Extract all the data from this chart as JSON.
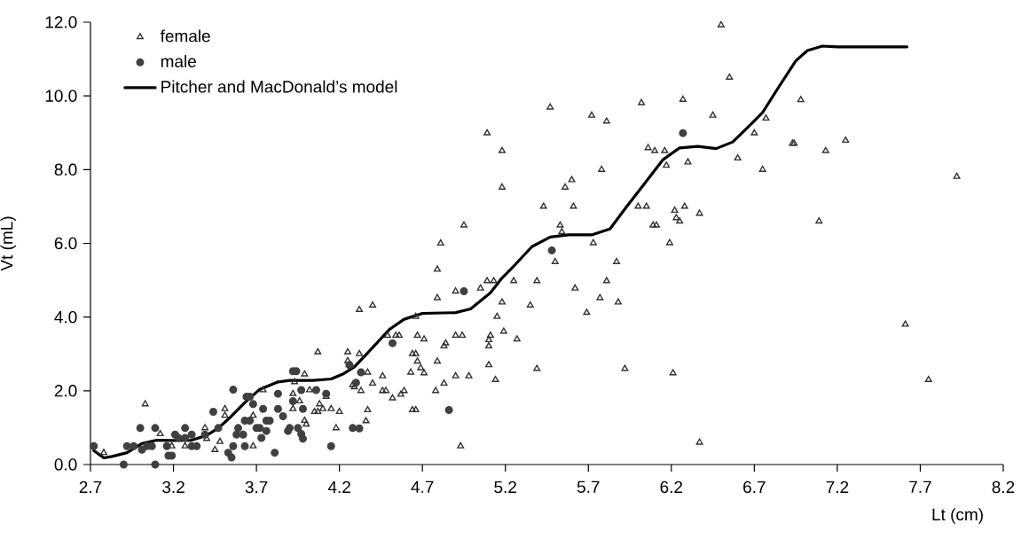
{
  "chart_data": {
    "type": "scatter",
    "xlabel": "Lt (cm)",
    "ylabel": "Vt (mL)",
    "xlim": [
      2.7,
      8.2
    ],
    "ylim": [
      0,
      12
    ],
    "xticks": [
      2.7,
      3.2,
      3.7,
      4.2,
      4.7,
      5.2,
      5.7,
      6.2,
      6.7,
      7.2,
      7.7,
      8.2
    ],
    "yticks": [
      {
        "value": 0,
        "label": "0.0"
      },
      {
        "value": 2,
        "label": "2.0"
      },
      {
        "value": 4,
        "label": "4.0"
      },
      {
        "value": 6,
        "label": "6.0"
      },
      {
        "value": 8,
        "label": "8.0"
      },
      {
        "value": 10,
        "label": "10.0"
      },
      {
        "value": 12,
        "label": "12.0"
      }
    ],
    "legend": "top left",
    "series": [
      {
        "name": "female",
        "marker": "triangle",
        "color": "#333333",
        "x": [
          2.78,
          3.03,
          3.12,
          3.19,
          3.27,
          3.39,
          3.4,
          3.45,
          3.48,
          3.51,
          3.51,
          3.68,
          3.68,
          3.74,
          3.92,
          3.93,
          3.92,
          3.96,
          3.99,
          3.99,
          4.0,
          4.02,
          4.05,
          4.07,
          4.08,
          4.1,
          4.12,
          4.15,
          4.18,
          4.2,
          4.07,
          4.25,
          4.25,
          4.27,
          4.28,
          4.79,
          5.09,
          5.13,
          4.9,
          5.05,
          4.79,
          5.25,
          5.39,
          5.62,
          5.77,
          5.18,
          5.35,
          5.69,
          4.32,
          4.4,
          4.66,
          5.15,
          4.49,
          4.54,
          4.56,
          4.67,
          4.71,
          4.9,
          4.94,
          5.11,
          5.1,
          5.19,
          5.27,
          5.1,
          4.84,
          4.83,
          4.32,
          4.64,
          4.66,
          4.67,
          4.79,
          4.63,
          4.69,
          4.71,
          5.1,
          5.39,
          4.37,
          4.46,
          4.9,
          4.98,
          4.83,
          5.14,
          4.4,
          4.29,
          4.33,
          4.46,
          4.48,
          4.59,
          4.57,
          4.52,
          4.78,
          4.64,
          4.66,
          4.37,
          4.36,
          4.93,
          4.81,
          5.09,
          5.18,
          5.18,
          4.95,
          5.47,
          6.02,
          6.27,
          6.5,
          6.55,
          6.37,
          5.72,
          5.81,
          6.45,
          6.06,
          6.1,
          6.16,
          6.17,
          6.3,
          6.77,
          6.7,
          6.6,
          6.75,
          6.93,
          6.94,
          5.78,
          5.6,
          5.56,
          5.43,
          5.61,
          5.53,
          5.54,
          6.0,
          6.05,
          6.22,
          6.28,
          6.37,
          6.23,
          6.25,
          6.09,
          6.11,
          5.73,
          6.19,
          5.5,
          5.87,
          5.81,
          5.88,
          5.92,
          6.21,
          6.98,
          7.25,
          7.13,
          7.92,
          7.09,
          7.61,
          7.75
        ],
        "values": [
          0.32,
          1.64,
          0.83,
          0.5,
          0.5,
          0.99,
          0.7,
          0.4,
          0.62,
          1.33,
          1.51,
          1.33,
          0.5,
          2.02,
          1.92,
          2.24,
          1.51,
          1.72,
          2.45,
          1.19,
          1.09,
          2.02,
          1.43,
          1.43,
          1.64,
          1.51,
          1.84,
          1.51,
          0.99,
          1.43,
          3.05,
          3.05,
          2.81,
          2.69,
          2.16,
          5.29,
          4.98,
          4.98,
          4.7,
          4.78,
          4.52,
          4.98,
          4.98,
          4.78,
          4.52,
          4.4,
          4.32,
          4.12,
          4.2,
          4.32,
          4.01,
          4.01,
          3.5,
          3.5,
          3.5,
          3.5,
          3.4,
          3.5,
          3.5,
          3.5,
          3.38,
          3.61,
          3.4,
          3.21,
          3.29,
          3.21,
          3.0,
          3.0,
          3.0,
          2.8,
          2.8,
          2.5,
          2.62,
          2.48,
          2.7,
          2.6,
          2.5,
          2.4,
          2.4,
          2.4,
          2.2,
          2.3,
          2.2,
          2.1,
          2.0,
          2.0,
          2.0,
          2.0,
          1.9,
          1.8,
          2.0,
          1.48,
          1.48,
          1.48,
          1.18,
          0.5,
          6.0,
          8.99,
          8.51,
          7.52,
          6.49,
          9.69,
          9.81,
          9.9,
          11.92,
          10.5,
          0.6,
          9.47,
          9.31,
          9.47,
          8.59,
          8.51,
          8.51,
          8.11,
          8.2,
          9.39,
          8.99,
          8.31,
          8.0,
          8.71,
          8.71,
          8.0,
          7.72,
          7.52,
          7.0,
          7.0,
          6.49,
          6.31,
          7.0,
          7.0,
          6.89,
          7.0,
          6.81,
          6.69,
          6.6,
          6.49,
          6.49,
          6.01,
          6.01,
          5.5,
          5.5,
          4.98,
          4.4,
          2.6,
          2.48,
          9.89,
          8.79,
          8.51,
          7.81,
          6.6,
          3.8,
          2.3
        ]
      },
      {
        "name": "male",
        "marker": "circle",
        "color": "#404040",
        "x": [
          2.72,
          2.9,
          2.92,
          2.96,
          3.0,
          3.01,
          3.04,
          3.07,
          3.09,
          3.09,
          3.16,
          3.17,
          3.19,
          3.21,
          3.23,
          3.27,
          3.27,
          3.31,
          3.31,
          3.34,
          3.39,
          3.44,
          3.47,
          3.53,
          3.55,
          3.56,
          3.56,
          3.58,
          3.59,
          3.62,
          3.63,
          3.64,
          3.66,
          3.63,
          3.66,
          3.68,
          3.7,
          3.72,
          3.73,
          3.74,
          3.76,
          3.76,
          3.78,
          3.81,
          3.83,
          3.83,
          3.86,
          3.89,
          3.9,
          3.92,
          3.94,
          3.92,
          3.97,
          3.98,
          3.97,
          3.98,
          3.95,
          4.06,
          4.12,
          4.15,
          4.28,
          4.95,
          4.52,
          4.26,
          4.33,
          4.3,
          4.32,
          4.86,
          6.27,
          5.48
        ],
        "values": [
          0.5,
          0.0,
          0.5,
          0.5,
          0.99,
          0.4,
          0.5,
          0.5,
          0.99,
          0.0,
          0.5,
          0.24,
          0.24,
          0.81,
          0.72,
          0.99,
          0.72,
          0.81,
          0.5,
          0.5,
          0.81,
          1.43,
          0.99,
          0.32,
          0.19,
          0.5,
          2.03,
          0.81,
          0.99,
          0.81,
          0.5,
          1.84,
          1.84,
          1.19,
          1.19,
          1.64,
          0.99,
          0.99,
          0.72,
          1.51,
          0.91,
          1.19,
          1.19,
          0.32,
          1.92,
          1.51,
          1.31,
          0.91,
          0.99,
          2.53,
          2.53,
          1.72,
          2.02,
          1.51,
          0.83,
          0.7,
          0.99,
          2.02,
          1.92,
          0.5,
          0.99,
          4.7,
          3.29,
          2.7,
          2.5,
          2.22,
          0.98,
          1.48,
          8.99,
          5.81
        ]
      },
      {
        "name": "Pitcher and MacDonald’s model",
        "type": "line",
        "marker": "none",
        "line_style": "solid",
        "color": "#000000",
        "x": [
          2.72,
          2.78,
          2.83,
          2.92,
          3.01,
          3.1,
          3.19,
          3.31,
          3.4,
          3.47,
          3.54,
          3.63,
          3.72,
          3.83,
          3.9,
          4.04,
          4.15,
          4.22,
          4.29,
          4.36,
          4.5,
          4.59,
          4.7,
          4.9,
          4.99,
          5.11,
          5.18,
          5.25,
          5.36,
          5.47,
          5.58,
          5.72,
          5.83,
          5.93,
          6.04,
          6.15,
          6.25,
          6.36,
          6.47,
          6.57,
          6.68,
          6.75,
          6.84,
          6.95,
          7.02,
          7.11,
          7.2,
          7.62
        ],
        "values": [
          0.38,
          0.18,
          0.22,
          0.32,
          0.57,
          0.66,
          0.65,
          0.66,
          0.79,
          0.99,
          1.27,
          1.68,
          2.04,
          2.24,
          2.28,
          2.28,
          2.32,
          2.45,
          2.65,
          2.98,
          3.66,
          3.94,
          4.1,
          4.12,
          4.22,
          4.66,
          5.06,
          5.38,
          5.91,
          6.17,
          6.23,
          6.23,
          6.39,
          6.99,
          7.63,
          8.27,
          8.59,
          8.63,
          8.57,
          8.75,
          9.23,
          9.55,
          10.19,
          10.95,
          11.23,
          11.35,
          11.33,
          11.33
        ]
      }
    ]
  }
}
